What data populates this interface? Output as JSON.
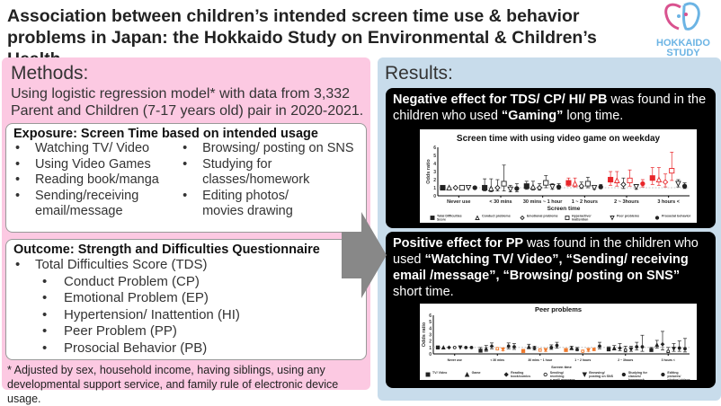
{
  "title": "Association between children’s intended screen time use & behavior problems in Japan: the Hokkaido Study on Environmental & Children’s Health",
  "logo": {
    "line1": "HOKKAIDO",
    "line2": "STUDY",
    "colors": {
      "pink": "#d9528f",
      "blue": "#6cb4e4"
    }
  },
  "colors": {
    "methods_bg": "#fcc9e2",
    "results_bg": "#c8dceb",
    "significant_red": "#e8262a",
    "significant_orange": "#f07a2e"
  },
  "methods": {
    "heading": "Methods:",
    "intro": "Using logistic regression model* with data from 3,332 Parent and Children (7-17 years old) pair in 2020-2021.",
    "exposure": {
      "heading": "Exposure: Screen Time based on intended usage",
      "col1": [
        "Watching TV/ Video",
        "Using Video Games",
        "Reading book/manga",
        "Sending/receiving email/message"
      ],
      "col2": [
        "Browsing/ posting on SNS",
        "Studying for classes/homework",
        "Editing photos/ movies drawing"
      ]
    },
    "outcome": {
      "heading": "Outcome: Strength and Difficulties Questionnaire",
      "main": "Total Difficulties Score (TDS)",
      "subs": [
        "Conduct Problem (CP)",
        "Emotional Problem (EP)",
        "Hypertension/ Inattention (HI)",
        "Peer Problem (PP)",
        "Prosocial Behavior (PB)"
      ]
    },
    "footnote": "* Adjusted by sex, household income, having siblings, using any developmental support service, and family rule of electronic device usage."
  },
  "results": {
    "heading": "Results:",
    "neg": {
      "a": "Negative effect for TDS/ CP/ HI/ PB ",
      "b": "was found in the children who used ",
      "c": "“Gaming”",
      "d": " long time."
    },
    "pos": {
      "a": "Positive effect for PP ",
      "b": "was found in the children who used ",
      "c": "“Watching TV/ Video”",
      "d": ", ",
      "e": "“Sending/ receiving email /message”",
      "f": ", ",
      "g": "“Browsing/ posting on SNS”",
      "h": " short time."
    }
  },
  "chart_data": [
    {
      "type": "scatter",
      "title": "Screen time with using video game on weekday",
      "xlabel": "Screen time",
      "ylabel": "Odds ratio",
      "ylim": [
        0,
        6
      ],
      "yticks": [
        0,
        1,
        2,
        3,
        4,
        5,
        6
      ],
      "reference_line": 1,
      "categories": [
        "Never use",
        "< 30 mins",
        "30 mins ~ 1 hour",
        "1 ~ 2 hours",
        "2 ~ 3hours",
        "3 hours <"
      ],
      "series": [
        {
          "name": "Total Difficulties Score",
          "marker": "square-filled",
          "values": [
            1,
            1.0,
            1.2,
            1.6,
            2.0,
            2.2
          ],
          "lo": [
            1,
            0.6,
            0.8,
            1.2,
            1.3,
            1.4
          ],
          "hi": [
            1,
            2.1,
            1.8,
            2.2,
            3.0,
            3.5
          ],
          "significant": [
            false,
            false,
            false,
            true,
            true,
            true
          ]
        },
        {
          "name": "Conduct problems",
          "marker": "triangle-open",
          "values": [
            1,
            0.9,
            1.1,
            1.5,
            1.9,
            2.0
          ],
          "lo": [
            1,
            0.5,
            0.7,
            1.1,
            1.2,
            1.3
          ],
          "hi": [
            1,
            2.1,
            1.8,
            2.2,
            3.0,
            3.5
          ],
          "significant": [
            false,
            false,
            false,
            true,
            true,
            true
          ]
        },
        {
          "name": "Emotional problems",
          "marker": "diamond-open",
          "values": [
            1,
            1.0,
            1.0,
            1.2,
            1.4,
            1.7
          ],
          "lo": [
            1,
            0.6,
            0.7,
            0.9,
            0.9,
            1.1
          ],
          "hi": [
            1,
            2.0,
            1.5,
            1.7,
            2.2,
            2.7
          ],
          "significant": [
            false,
            false,
            false,
            false,
            false,
            true
          ]
        },
        {
          "name": "Hyperactive/ Inattention",
          "marker": "square-open",
          "values": [
            1,
            1.5,
            1.6,
            1.5,
            1.9,
            3.1
          ],
          "lo": [
            1,
            0.6,
            1.0,
            1.0,
            1.2,
            1.9
          ],
          "hi": [
            1,
            3.8,
            2.5,
            2.3,
            3.2,
            5.4
          ],
          "significant": [
            false,
            false,
            false,
            false,
            true,
            true
          ]
        },
        {
          "name": "Peer problems",
          "marker": "triangle-down-open",
          "values": [
            1,
            0.8,
            1.1,
            1.0,
            1.1,
            1.5
          ],
          "lo": [
            1,
            0.5,
            0.8,
            0.8,
            0.8,
            1.1
          ],
          "hi": [
            1,
            1.3,
            1.5,
            1.3,
            1.3,
            2.0
          ],
          "significant": [
            false,
            false,
            false,
            false,
            false,
            false
          ]
        },
        {
          "name": "Prosocial behavior",
          "marker": "circle-filled",
          "values": [
            1,
            0.9,
            1.1,
            1.1,
            1.5,
            1.2
          ],
          "lo": [
            1,
            0.5,
            0.8,
            0.9,
            1.1,
            0.9
          ],
          "hi": [
            1,
            1.5,
            1.5,
            1.4,
            2.0,
            1.6
          ],
          "significant": [
            false,
            false,
            false,
            false,
            true,
            false
          ]
        }
      ]
    },
    {
      "type": "scatter",
      "title": "Peer problems",
      "xlabel": "Screen time",
      "ylabel": "Odds ratio",
      "ylim": [
        0,
        6
      ],
      "yticks": [
        0,
        1,
        2,
        3,
        4,
        5,
        6
      ],
      "reference_line": 1,
      "categories": [
        "Never use",
        "< 30 mins",
        "30 mins ~ 1 hour",
        "1 ~ 2 hours",
        "2 ~ 3hours",
        "3 hours <"
      ],
      "series": [
        {
          "name": "TV/ Video",
          "marker": "square-filled",
          "values": [
            1,
            0.5,
            0.45,
            0.6,
            0.7,
            0.6
          ],
          "lo": [
            1,
            0.3,
            0.3,
            0.4,
            0.5,
            0.4
          ],
          "hi": [
            1,
            1.0,
            0.7,
            0.8,
            1.1,
            1.0
          ],
          "significant": [
            false,
            false,
            true,
            true,
            false,
            false
          ]
        },
        {
          "name": "Game",
          "marker": "triangle-filled",
          "values": [
            1,
            0.8,
            1.1,
            0.9,
            0.9,
            1.4
          ],
          "lo": [
            1,
            0.4,
            0.8,
            0.7,
            0.6,
            0.9
          ],
          "hi": [
            1,
            1.3,
            1.5,
            1.2,
            1.3,
            2.1
          ],
          "significant": [
            false,
            false,
            false,
            false,
            false,
            false
          ]
        },
        {
          "name": "Reading book/comics",
          "marker": "diamond-filled",
          "values": [
            1,
            1.2,
            0.9,
            0.7,
            0.9,
            1.5
          ],
          "lo": [
            1,
            0.8,
            0.6,
            0.5,
            0.5,
            0.6
          ],
          "hi": [
            1,
            1.7,
            1.2,
            1.0,
            1.6,
            3.5
          ],
          "significant": [
            false,
            false,
            false,
            false,
            false,
            false
          ]
        },
        {
          "name": "Sending/ receiving e-mail/ message",
          "marker": "circle-open",
          "values": [
            1,
            0.8,
            0.6,
            0.4,
            0.6,
            0.4
          ],
          "lo": [
            1,
            0.6,
            0.4,
            0.3,
            0.3,
            0.2
          ],
          "hi": [
            1,
            1.0,
            0.8,
            0.6,
            1.2,
            1.0
          ],
          "significant": [
            false,
            true,
            true,
            true,
            false,
            false
          ]
        },
        {
          "name": "Browsing/ posting on SNS",
          "marker": "triangle-down-filled",
          "values": [
            1,
            0.7,
            0.6,
            0.6,
            0.7,
            0.8
          ],
          "lo": [
            1,
            0.5,
            0.4,
            0.4,
            0.4,
            0.4
          ],
          "hi": [
            1,
            0.9,
            0.8,
            0.8,
            1.2,
            1.6
          ],
          "significant": [
            false,
            true,
            true,
            true,
            false,
            false
          ]
        },
        {
          "name": "Studying for classes/ homework",
          "marker": "circle-filled",
          "values": [
            1,
            1.2,
            1.0,
            0.7,
            1.1,
            0.9
          ],
          "lo": [
            1,
            0.8,
            0.7,
            0.5,
            0.6,
            0.4
          ],
          "hi": [
            1,
            1.7,
            1.4,
            0.9,
            1.8,
            2.0
          ],
          "significant": [
            false,
            false,
            false,
            true,
            false,
            false
          ]
        },
        {
          "name": "Editing pictures/ photos/ videos",
          "marker": "circle-filled",
          "values": [
            1,
            1.1,
            1.3,
            1.2,
            1.1,
            0.8
          ],
          "lo": [
            1,
            0.7,
            0.9,
            0.8,
            0.4,
            0.3
          ],
          "hi": [
            1,
            1.6,
            1.8,
            1.8,
            2.9,
            2.4
          ],
          "significant": [
            false,
            false,
            false,
            false,
            false,
            false
          ]
        }
      ]
    }
  ]
}
